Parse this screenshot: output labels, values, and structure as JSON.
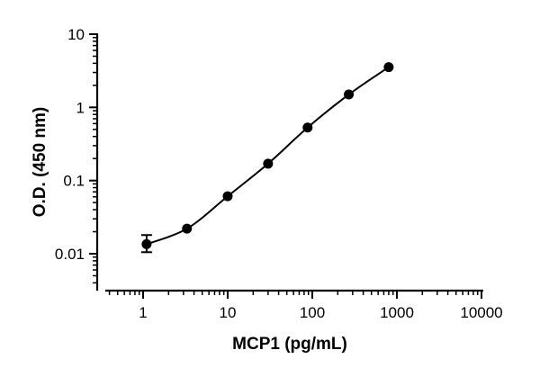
{
  "chart_data": {
    "type": "scatter",
    "xlabel": "MCP1 (pg/mL)",
    "ylabel": "O.D. (450 nm)",
    "x_scale": "log",
    "y_scale": "log",
    "xlim": [
      0.3,
      10000
    ],
    "ylim": [
      0.003,
      10
    ],
    "x_ticks": [
      1,
      10,
      100,
      1000,
      10000
    ],
    "x_tick_labels": [
      "1",
      "10",
      "100",
      "1000",
      "10000"
    ],
    "y_ticks": [
      0.01,
      0.1,
      1,
      10
    ],
    "y_tick_labels": [
      "0.01",
      "0.1",
      "1",
      "10"
    ],
    "grid": false,
    "legend": "none",
    "marker_color": "#000000",
    "line_color": "#000000",
    "series": [
      {
        "x": [
          1.1,
          3.3,
          10,
          30,
          88,
          270,
          800
        ],
        "y": [
          0.0135,
          0.022,
          0.061,
          0.17,
          0.53,
          1.5,
          3.55
        ],
        "error_low": [
          0.0105,
          null,
          null,
          null,
          null,
          null,
          null
        ],
        "error_high": [
          0.018,
          null,
          null,
          null,
          null,
          null,
          null
        ],
        "fit": "4PL curve"
      }
    ]
  }
}
